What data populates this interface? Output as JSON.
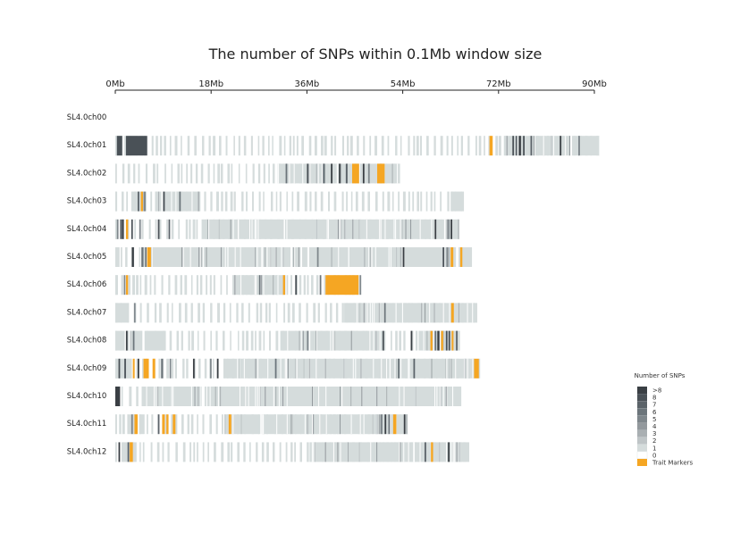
{
  "chart_data": {
    "type": "heatmap",
    "title": "The number of SNPs within 0.1Mb window size",
    "x_ticks": [
      {
        "value": 0,
        "label": "0Mb"
      },
      {
        "value": 18,
        "label": "18Mb"
      },
      {
        "value": 36,
        "label": "36Mb"
      },
      {
        "value": 54,
        "label": "54Mb"
      },
      {
        "value": 72,
        "label": "72Mb"
      },
      {
        "value": 90,
        "label": "90Mb"
      }
    ],
    "xlim": [
      0,
      90
    ],
    "x_unit": "Mb",
    "window_size_mb": 0.1,
    "legend": {
      "title": "Number of SNPs",
      "position": "bottom-right",
      "entries": [
        {
          "label": ">8",
          "color": "#3a3f44"
        },
        {
          "label": "8",
          "color": "#4a5157"
        },
        {
          "label": "7",
          "color": "#5b6369"
        },
        {
          "label": "6",
          "color": "#6c757b"
        },
        {
          "label": "5",
          "color": "#7f878c"
        },
        {
          "label": "4",
          "color": "#93999d"
        },
        {
          "label": "3",
          "color": "#a9afb2"
        },
        {
          "label": "2",
          "color": "#bfc5c7"
        },
        {
          "label": "1",
          "color": "#d5dcdc"
        },
        {
          "label": "0",
          "color": "#ffffff"
        },
        {
          "label": "Trait Markers",
          "color": "#f5a623"
        }
      ]
    },
    "chromosomes": [
      {
        "name": "SL4.0ch00",
        "length": 0,
        "segments": [],
        "markers": []
      },
      {
        "name": "SL4.0ch01",
        "length": 91,
        "segments": [
          [
            0,
            1.2
          ],
          [
            2,
            4
          ],
          [
            4.6,
            5.2
          ],
          [
            73,
            91
          ]
        ],
        "markers": [
          [
            70.3,
            70.9
          ]
        ],
        "dark": [
          [
            0.3,
            1
          ],
          [
            2,
            4,
            3
          ],
          [
            74.6,
            0.3
          ],
          [
            75.2,
            0.3
          ],
          [
            75.8,
            0.4
          ],
          [
            76.6,
            0.3
          ],
          [
            78.0,
            0.3
          ],
          [
            83.5,
            0.3
          ],
          [
            87,
            0.3
          ]
        ]
      },
      {
        "name": "SL4.0ch02",
        "length": 53.5,
        "segments": [
          [
            30.5,
            53.5
          ]
        ],
        "markers": [
          [
            44.5,
            45.8
          ],
          [
            49.2,
            50.6
          ]
        ],
        "dark": [
          [
            32,
            0.3
          ],
          [
            36,
            0.3
          ],
          [
            39,
            0.4
          ],
          [
            40.5,
            0.3
          ],
          [
            42,
            0.3
          ],
          [
            43.3,
            0.3
          ],
          [
            46.5,
            0.3
          ],
          [
            47.5,
            0.3
          ]
        ]
      },
      {
        "name": "SL4.0ch03",
        "length": 65.5,
        "segments": [
          [
            0,
            0.3
          ],
          [
            3,
            5.5
          ],
          [
            7.5,
            16
          ],
          [
            63,
            65.5
          ]
        ],
        "markers": [
          [
            4.8,
            5.2
          ]
        ],
        "dark": [
          [
            4.2,
            0.3
          ],
          [
            5.3,
            0.4
          ],
          [
            9,
            0.3
          ],
          [
            12,
            0.3
          ]
        ]
      },
      {
        "name": "SL4.0ch04",
        "length": 64.5,
        "segments": [
          [
            0,
            0.5
          ],
          [
            16.5,
            64.5
          ]
        ],
        "markers": [
          [
            2.0,
            2.4
          ]
        ],
        "dark": [
          [
            0.3,
            0.3
          ],
          [
            0.9,
            0.4
          ],
          [
            1.3,
            0.3
          ],
          [
            3,
            0.3
          ],
          [
            4.5,
            0.3
          ],
          [
            8,
            0.3
          ],
          [
            10,
            0.3
          ],
          [
            60,
            0.3
          ],
          [
            62.5,
            0.3
          ],
          [
            63,
            0.3
          ]
        ]
      },
      {
        "name": "SL4.0ch05",
        "length": 67,
        "segments": [
          [
            0,
            0.8
          ],
          [
            7,
            64
          ],
          [
            64.5,
            67
          ]
        ],
        "markers": [
          [
            6.0,
            6.7
          ],
          [
            63.0,
            63.5
          ],
          [
            64.8,
            65.2
          ]
        ],
        "dark": [
          [
            3.1,
            0.4
          ],
          [
            4.9,
            0.4
          ],
          [
            5.6,
            0.3
          ],
          [
            37.9,
            0.3
          ],
          [
            54,
            0.3
          ],
          [
            61.5,
            0.3
          ],
          [
            62.2,
            0.3
          ]
        ]
      },
      {
        "name": "SL4.0ch06",
        "length": 46.5,
        "segments": [
          [
            0,
            0.5
          ],
          [
            5.5,
            6
          ],
          [
            22,
            32
          ]
        ],
        "markers": [
          [
            2.0,
            2.4
          ],
          [
            31.5,
            31.9
          ],
          [
            39.5,
            45.7
          ]
        ],
        "dark": [
          [
            1.6,
            0.3
          ],
          [
            27,
            0.3
          ],
          [
            33.8,
            0.3
          ],
          [
            38.4,
            0.3
          ],
          [
            45.9,
            0.3
          ]
        ]
      },
      {
        "name": "SL4.0ch07",
        "length": 68,
        "segments": [
          [
            0,
            2.5
          ],
          [
            43,
            63
          ],
          [
            63.5,
            68
          ]
        ],
        "markers": [
          [
            63.1,
            63.6
          ]
        ],
        "dark": [
          [
            3.5,
            0.3
          ],
          [
            50.5,
            0.3
          ]
        ]
      },
      {
        "name": "SL4.0ch08",
        "length": 64.5,
        "segments": [
          [
            0,
            5
          ],
          [
            5.5,
            9.5
          ],
          [
            31,
            50.5
          ],
          [
            57,
            64.5
          ]
        ],
        "markers": [
          [
            59.2,
            59.6
          ],
          [
            61.2,
            61.6
          ],
          [
            63.2,
            63.5
          ]
        ],
        "dark": [
          [
            2.0,
            0.3
          ],
          [
            3.3,
            0.3
          ],
          [
            36,
            0.3
          ],
          [
            50.2,
            0.3
          ],
          [
            55.5,
            0.3
          ],
          [
            60.0,
            0.3
          ],
          [
            60.5,
            0.4
          ],
          [
            62.1,
            0.3
          ],
          [
            62.6,
            0.3
          ],
          [
            64.0,
            0.3
          ]
        ]
      },
      {
        "name": "SL4.0ch09",
        "length": 68.5,
        "segments": [
          [
            0,
            3
          ],
          [
            20.5,
            67.5
          ]
        ],
        "markers": [
          [
            3.3,
            3.6
          ],
          [
            5.3,
            6.3
          ],
          [
            7.0,
            7.5
          ],
          [
            67.4,
            68.3
          ]
        ],
        "dark": [
          [
            0.6,
            0.3
          ],
          [
            1.7,
            0.3
          ],
          [
            4.2,
            0.3
          ],
          [
            8.6,
            0.4
          ],
          [
            10.2,
            0.3
          ],
          [
            14.6,
            0.3
          ],
          [
            17.8,
            0.3
          ],
          [
            19.1,
            0.3
          ],
          [
            30,
            0.3
          ],
          [
            53.1,
            0.3
          ],
          [
            56,
            0.3
          ]
        ]
      },
      {
        "name": "SL4.0ch10",
        "length": 65,
        "segments": [
          [
            0,
            0.9
          ],
          [
            5,
            65
          ]
        ],
        "markers": [],
        "dark": [
          [
            0,
            0.9
          ]
        ]
      },
      {
        "name": "SL4.0ch11",
        "length": 55,
        "segments": [
          [
            2.5,
            4
          ],
          [
            4.5,
            5.5
          ],
          [
            20.5,
            27
          ],
          [
            27.5,
            55
          ]
        ],
        "markers": [
          [
            3.6,
            4.2
          ],
          [
            8.8,
            9.3
          ],
          [
            9.6,
            10.0
          ],
          [
            10.8,
            11.3
          ],
          [
            21.3,
            21.8
          ],
          [
            52.2,
            52.8
          ]
        ],
        "dark": [
          [
            3.0,
            0.3
          ],
          [
            8.0,
            0.3
          ],
          [
            49.8,
            0.4
          ],
          [
            50.6,
            0.3
          ],
          [
            51.3,
            0.3
          ],
          [
            54.2,
            0.3
          ]
        ]
      },
      {
        "name": "SL4.0ch12",
        "length": 66.5,
        "segments": [
          [
            0,
            0.3
          ],
          [
            1.5,
            4
          ],
          [
            36.5,
            66.5
          ]
        ],
        "markers": [
          [
            2.7,
            3.3
          ],
          [
            59.3,
            59.7
          ]
        ],
        "dark": [
          [
            0.6,
            0.3
          ],
          [
            2.3,
            0.3
          ],
          [
            58.1,
            0.3
          ],
          [
            62.5,
            0.3
          ]
        ]
      }
    ]
  }
}
